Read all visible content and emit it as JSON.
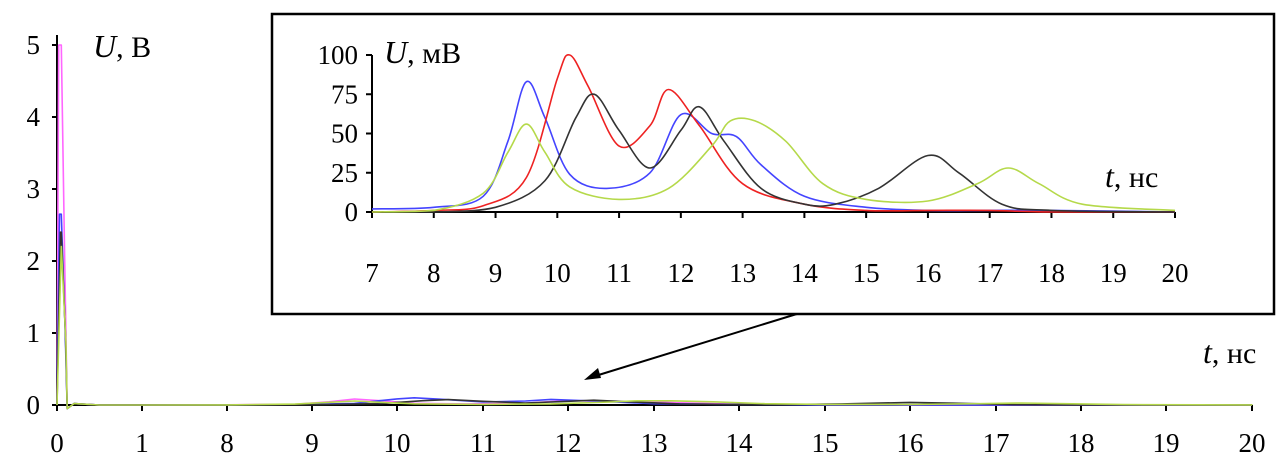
{
  "chart_data": [
    {
      "type": "line",
      "panel": "main",
      "ylabel": {
        "sym": "U",
        "unit": ", В"
      },
      "xlabel": {
        "sym": "t",
        "unit": ", нс"
      },
      "ylim": [
        0,
        5
      ],
      "yticks": [
        "0",
        "1",
        "2",
        "3",
        "4",
        "5"
      ],
      "xticks": [
        "0",
        "1",
        "8",
        "9",
        "10",
        "11",
        "12",
        "13",
        "14",
        "15",
        "16",
        "17",
        "18",
        "19",
        "20"
      ],
      "grid": false,
      "series": [
        {
          "color": "#ff66ff",
          "x": [
            0,
            1,
            8,
            20
          ],
          "y": [
            0.3,
            0.0,
            0.0,
            0.0
          ],
          "peak": 5.0
        },
        {
          "color": "#4444ff",
          "x": [
            0,
            1,
            8,
            20
          ],
          "y": [
            0.2,
            0.0,
            0.0,
            0.0
          ],
          "peak": 2.65
        },
        {
          "color": "#333333",
          "x": [
            0,
            1,
            8,
            20
          ],
          "y": [
            0.1,
            0.0,
            0.0,
            0.0
          ],
          "peak": 2.4
        },
        {
          "color": "#b5d94a",
          "x": [
            0,
            1,
            8,
            20
          ],
          "y": [
            0.1,
            0.0,
            0.0,
            0.0
          ],
          "peak": 2.2
        }
      ]
    },
    {
      "type": "line",
      "panel": "inset",
      "ylabel": {
        "sym": "U",
        "unit": ", мВ"
      },
      "xlabel": {
        "sym": "t",
        "unit": ", нс"
      },
      "xlim": [
        7,
        20
      ],
      "ylim": [
        0,
        100
      ],
      "yticks": [
        "0",
        "25",
        "50",
        "75",
        "100"
      ],
      "xticks": [
        "7",
        "8",
        "9",
        "10",
        "11",
        "12",
        "13",
        "14",
        "15",
        "16",
        "17",
        "18",
        "19",
        "20"
      ],
      "grid": false,
      "series": [
        {
          "color": "#4444ff",
          "x": [
            7,
            8,
            8.8,
            9.2,
            9.5,
            9.8,
            10.2,
            10.8,
            11.5,
            12.0,
            12.5,
            12.9,
            13.3,
            14.0,
            15,
            16,
            17,
            18,
            20
          ],
          "y": [
            2,
            3,
            10,
            45,
            83,
            60,
            24,
            15,
            25,
            62,
            50,
            48,
            30,
            10,
            3,
            1,
            1,
            1,
            0
          ]
        },
        {
          "color": "#ee2222",
          "x": [
            7,
            8,
            8.8,
            9.5,
            10.0,
            10.2,
            10.5,
            11.0,
            11.5,
            11.8,
            12.3,
            13.0,
            14.0,
            15,
            16,
            17,
            18,
            20
          ],
          "y": [
            0,
            1,
            4,
            22,
            85,
            100,
            80,
            42,
            55,
            78,
            55,
            18,
            5,
            1,
            1,
            1,
            0,
            0
          ]
        },
        {
          "color": "#333333",
          "x": [
            7,
            8,
            9,
            9.8,
            10.3,
            10.6,
            11.0,
            11.5,
            12.0,
            12.3,
            12.7,
            13.3,
            14.0,
            14.5,
            15.2,
            16.0,
            16.5,
            17.2,
            18,
            20
          ],
          "y": [
            0,
            0,
            3,
            20,
            60,
            75,
            52,
            28,
            52,
            67,
            45,
            15,
            5,
            5,
            15,
            36,
            25,
            5,
            1,
            0
          ]
        },
        {
          "color": "#b5d94a",
          "x": [
            7,
            8,
            8.8,
            9.2,
            9.5,
            9.8,
            10.2,
            11.0,
            11.8,
            12.5,
            12.8,
            13.2,
            13.7,
            14.3,
            15,
            16,
            16.8,
            17.3,
            17.8,
            18.5,
            20
          ],
          "y": [
            0,
            1,
            12,
            38,
            56,
            38,
            16,
            8,
            15,
            42,
            58,
            58,
            45,
            18,
            8,
            7,
            18,
            28,
            18,
            5,
            1
          ]
        }
      ]
    }
  ]
}
